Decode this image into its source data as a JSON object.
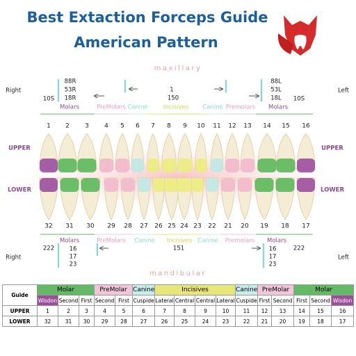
{
  "header": {
    "title_line1": "Best Extaction Forceps Guide",
    "title_line2": "American Pattern"
  },
  "upper": {
    "jaw": "maxillary",
    "right": "Right",
    "left": "Left",
    "row_label": "UPPER",
    "other_row_label": "LOWER",
    "forceps": {
      "right_wisdom": "10S",
      "right_molars": [
        "88R",
        "53R",
        "18R"
      ],
      "anterior": [
        "1",
        "150"
      ],
      "left_molars": [
        "88L",
        "53L",
        "18L"
      ],
      "left_wisdom": "10S"
    },
    "groups": [
      "Molars",
      "PreMolars",
      "Canine",
      "Incisives",
      "Canine",
      "Premolars",
      "Molars"
    ],
    "teeth": [
      1,
      2,
      3,
      4,
      5,
      6,
      7,
      8,
      9,
      10,
      11,
      12,
      13,
      14,
      15,
      16
    ]
  },
  "lower": {
    "jaw": "mandibular",
    "right": "Right",
    "left": "Left",
    "forceps": {
      "right_wisdom": "222",
      "right_molars": [
        "16",
        "17",
        "23"
      ],
      "anterior": "151",
      "left_molars": [
        "16",
        "17",
        "23"
      ],
      "left_wisdom": "222"
    },
    "groups": [
      "Molars",
      "PreMolars",
      "Canine",
      "Incisives",
      "Canine",
      "Premolars",
      "Molars"
    ],
    "teeth": [
      32,
      31,
      30,
      29,
      28,
      27,
      26,
      25,
      24,
      23,
      22,
      21,
      20,
      19,
      18,
      17
    ]
  },
  "table": {
    "corner": "Guide",
    "groups": [
      "Molar",
      "PreMolar",
      "Canine",
      "Incisives",
      "Canine",
      "PreMolar",
      "Molar"
    ],
    "subheaders": [
      "Wisdon",
      "Second",
      "First",
      "Second",
      "First",
      "Cuspide",
      "Lateral",
      "Central",
      "Central",
      "Lateral",
      "Cuspide",
      "First",
      "Second",
      "First",
      "Second",
      "Wisdon"
    ],
    "rows": [
      [
        "UPPER",
        1,
        2,
        3,
        4,
        5,
        6,
        7,
        8,
        9,
        10,
        11,
        12,
        13,
        14,
        15,
        16
      ],
      [
        "LOWER",
        32,
        31,
        30,
        29,
        28,
        27,
        26,
        25,
        24,
        23,
        22,
        21,
        20,
        19,
        18,
        17
      ]
    ]
  }
}
